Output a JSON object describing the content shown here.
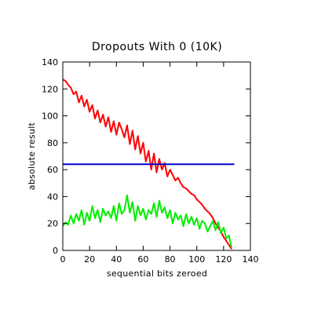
{
  "chart_data": {
    "type": "line",
    "title": "Dropouts With 0 (10K)",
    "xlabel": "sequential bits zeroed",
    "ylabel": "absolute result",
    "xlim": [
      0,
      140
    ],
    "ylim": [
      0,
      140
    ],
    "xticks": [
      0,
      20,
      40,
      60,
      80,
      100,
      120,
      140
    ],
    "yticks": [
      0,
      20,
      40,
      60,
      80,
      100,
      120,
      140
    ],
    "grid": false,
    "legend": "none",
    "series": [
      {
        "color": "#ff0000",
        "x": [
          0,
          2,
          4,
          6,
          8,
          10,
          12,
          14,
          16,
          18,
          20,
          22,
          24,
          26,
          28,
          30,
          32,
          34,
          36,
          38,
          40,
          42,
          44,
          46,
          48,
          50,
          52,
          54,
          56,
          58,
          60,
          62,
          64,
          66,
          68,
          70,
          72,
          74,
          76,
          78,
          80,
          82,
          84,
          86,
          88,
          90,
          92,
          94,
          96,
          98,
          100,
          102,
          104,
          106,
          108,
          110,
          112,
          114,
          116,
          118,
          120,
          122,
          124,
          126
        ],
        "y": [
          127,
          126,
          123,
          121,
          116,
          118,
          110,
          115,
          107,
          112,
          103,
          108,
          98,
          104,
          95,
          101,
          92,
          99,
          88,
          96,
          86,
          95,
          90,
          84,
          93,
          79,
          89,
          75,
          85,
          72,
          80,
          66,
          74,
          60,
          72,
          58,
          68,
          60,
          65,
          55,
          60,
          56,
          52,
          54,
          50,
          47,
          46,
          44,
          42,
          41,
          38,
          36,
          34,
          31,
          29,
          27,
          24,
          20,
          17,
          14,
          10,
          7,
          4,
          1
        ]
      },
      {
        "color": "#0000cc",
        "x": [
          0,
          128
        ],
        "y": [
          64,
          64
        ]
      },
      {
        "color": "#00ee00",
        "x": [
          0,
          2,
          4,
          6,
          8,
          10,
          12,
          14,
          16,
          18,
          20,
          22,
          24,
          26,
          28,
          30,
          32,
          34,
          36,
          38,
          40,
          42,
          44,
          46,
          48,
          50,
          52,
          54,
          56,
          58,
          60,
          62,
          64,
          66,
          68,
          70,
          72,
          74,
          76,
          78,
          80,
          82,
          84,
          86,
          88,
          90,
          92,
          94,
          96,
          98,
          100,
          102,
          104,
          106,
          108,
          110,
          112,
          114,
          116,
          118,
          120,
          122,
          124,
          126
        ],
        "y": [
          18,
          21,
          19,
          26,
          20,
          27,
          22,
          30,
          19,
          28,
          22,
          33,
          24,
          30,
          21,
          31,
          26,
          29,
          24,
          33,
          22,
          35,
          27,
          30,
          41,
          28,
          36,
          22,
          33,
          26,
          31,
          23,
          30,
          27,
          35,
          25,
          37,
          28,
          32,
          24,
          30,
          20,
          28,
          23,
          26,
          18,
          27,
          20,
          25,
          19,
          24,
          16,
          22,
          20,
          14,
          18,
          22,
          15,
          21,
          13,
          17,
          9,
          11,
          2
        ]
      }
    ]
  }
}
